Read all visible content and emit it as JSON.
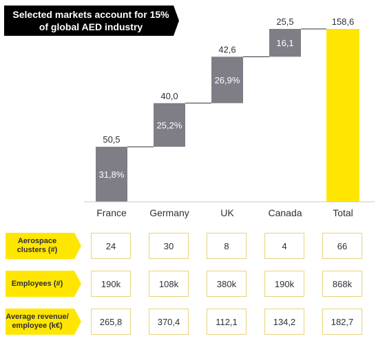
{
  "title": "Selected markets account for 15% of global AED industry",
  "chart_data": {
    "type": "bar",
    "subtype": "waterfall",
    "categories": [
      "France",
      "Germany",
      "UK",
      "Canada",
      "Total"
    ],
    "values": [
      50.5,
      40.0,
      42.6,
      25.5,
      158.6
    ],
    "value_labels": [
      "50,5",
      "40,0",
      "42,6",
      "25,5",
      "158,6"
    ],
    "share_labels": [
      "31,8%",
      "25,2%",
      "26,9%",
      "16,1",
      ""
    ],
    "bar_colors": [
      "#7f7e86",
      "#7f7e86",
      "#7f7e86",
      "#7f7e86",
      "#ffe600"
    ],
    "ylim": [
      0,
      158.6
    ]
  },
  "table": {
    "rows": [
      {
        "label": "Aerospace clusters (#)",
        "values": [
          "24",
          "30",
          "8",
          "4",
          "66"
        ]
      },
      {
        "label": "Employees (#)",
        "values": [
          "190k",
          "108k",
          "380k",
          "190k",
          "868k"
        ]
      },
      {
        "label": "Average revenue/ employee (k€)",
        "values": [
          "265,8",
          "370,4",
          "112,1",
          "134,2",
          "182,7"
        ]
      }
    ]
  },
  "colors": {
    "accent": "#ffe600",
    "bar": "#7f7e86",
    "banner": "#000000"
  }
}
